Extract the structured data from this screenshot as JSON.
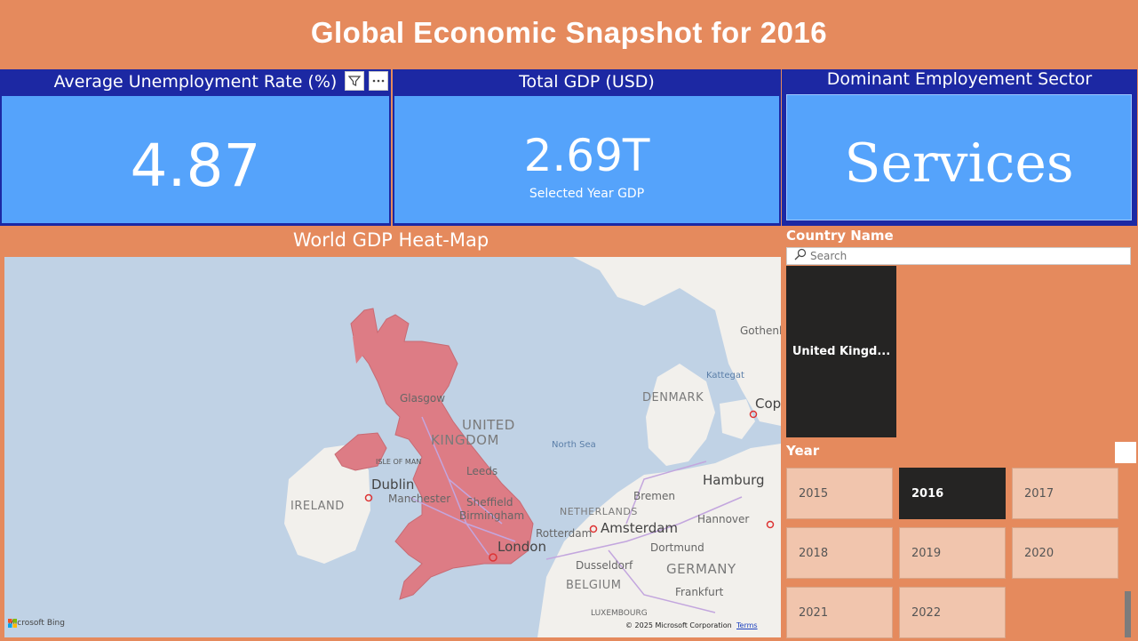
{
  "title": "Global Economic Snapshot for 2016",
  "kpis": {
    "unemployment": {
      "label": "Average Unemployment Rate (%)",
      "value": "4.87"
    },
    "gdp": {
      "label": "Total GDP (USD)",
      "value": "2.69T",
      "sublabel": "Selected Year GDP"
    },
    "sector": {
      "label": "Dominant Employement Sector",
      "value": "Services"
    }
  },
  "map": {
    "title": "World GDP Heat-Map",
    "attribution": "© 2025 Microsoft Corporation",
    "terms": "Terms",
    "logo": "Microsoft Bing",
    "labels": {
      "gothenburg": "Gothenb",
      "kattegat": "Kattegat",
      "denmark": "DENMARK",
      "cope": "Cope",
      "glasgow": "Glasgow",
      "uk1": "UNITED",
      "uk2": "KINGDOM",
      "north_sea": "North Sea",
      "isle_of_man": "ISLE OF MAN",
      "dublin": "Dublin",
      "ireland": "IRELAND",
      "leeds": "Leeds",
      "manchester": "Manchester",
      "sheffield": "Sheffield",
      "birmingham": "Birmingham",
      "london": "London",
      "bremen": "Bremen",
      "hamburg": "Hamburg",
      "netherlands": "NETHERLANDS",
      "hannover": "Hannover",
      "amsterdam": "Amsterdam",
      "rotterdam": "Rotterdam",
      "dortmund": "Dortmund",
      "dusseldorf": "Dusseldorf",
      "germany": "GERMANY",
      "belgium": "BELGIUM",
      "frankfurt": "Frankfurt",
      "luxembourg": "LUXEMBOURG"
    }
  },
  "country_slicer": {
    "title": "Country Name",
    "search_placeholder": "Search",
    "selected": "United Kingd..."
  },
  "year_slicer": {
    "title": "Year",
    "years": [
      "2015",
      "2016",
      "2017",
      "2018",
      "2019",
      "2020",
      "2021",
      "2022"
    ],
    "selected": "2016"
  },
  "colors": {
    "background": "#e58a5d",
    "header": "#1c28a3",
    "card": "#55a3fb",
    "highlight": "#dd7c85",
    "selected_tile": "#252423"
  }
}
